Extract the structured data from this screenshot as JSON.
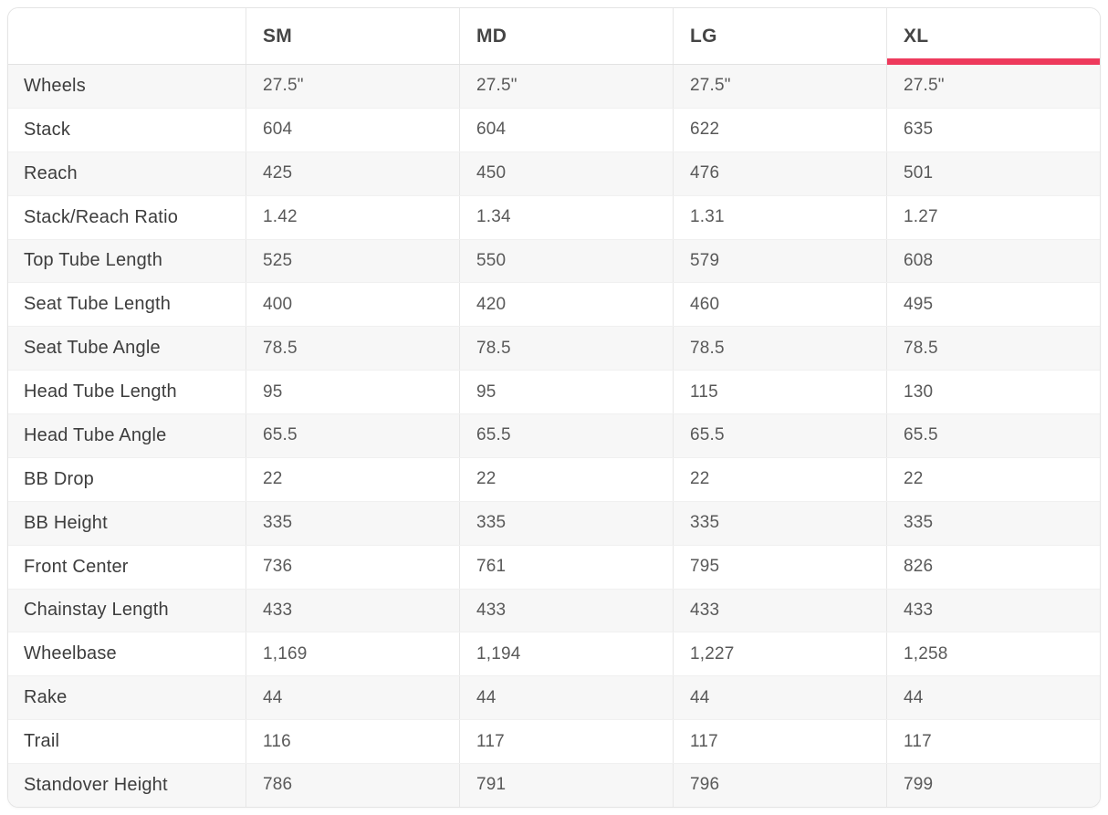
{
  "table": {
    "columns": [
      {
        "label": "SM",
        "selected": false
      },
      {
        "label": "MD",
        "selected": false
      },
      {
        "label": "LG",
        "selected": false
      },
      {
        "label": "XL",
        "selected": true
      }
    ],
    "rows": [
      {
        "label": "Wheels",
        "values": [
          "27.5\"",
          "27.5\"",
          "27.5\"",
          "27.5\""
        ]
      },
      {
        "label": "Stack",
        "values": [
          "604",
          "604",
          "622",
          "635"
        ]
      },
      {
        "label": "Reach",
        "values": [
          "425",
          "450",
          "476",
          "501"
        ]
      },
      {
        "label": "Stack/Reach Ratio",
        "values": [
          "1.42",
          "1.34",
          "1.31",
          "1.27"
        ]
      },
      {
        "label": "Top Tube Length",
        "values": [
          "525",
          "550",
          "579",
          "608"
        ]
      },
      {
        "label": "Seat Tube Length",
        "values": [
          "400",
          "420",
          "460",
          "495"
        ]
      },
      {
        "label": "Seat Tube Angle",
        "values": [
          "78.5",
          "78.5",
          "78.5",
          "78.5"
        ]
      },
      {
        "label": "Head Tube Length",
        "values": [
          "95",
          "95",
          "115",
          "130"
        ]
      },
      {
        "label": "Head Tube Angle",
        "values": [
          "65.5",
          "65.5",
          "65.5",
          "65.5"
        ]
      },
      {
        "label": "BB Drop",
        "values": [
          "22",
          "22",
          "22",
          "22"
        ]
      },
      {
        "label": "BB Height",
        "values": [
          "335",
          "335",
          "335",
          "335"
        ]
      },
      {
        "label": "Front Center",
        "values": [
          "736",
          "761",
          "795",
          "826"
        ]
      },
      {
        "label": "Chainstay Length",
        "values": [
          "433",
          "433",
          "433",
          "433"
        ]
      },
      {
        "label": "Wheelbase",
        "values": [
          "1,169",
          "1,194",
          "1,227",
          "1,258"
        ]
      },
      {
        "label": "Rake",
        "values": [
          "44",
          "44",
          "44",
          "44"
        ]
      },
      {
        "label": "Trail",
        "values": [
          "116",
          "117",
          "117",
          "117"
        ]
      },
      {
        "label": "Standover Height",
        "values": [
          "786",
          "791",
          "796",
          "799"
        ]
      }
    ]
  },
  "colors": {
    "accent": "#ee3a5c",
    "row_stripe": "#f7f7f7"
  },
  "chart_data": {
    "type": "table",
    "columns": [
      "SM",
      "MD",
      "LG",
      "XL"
    ],
    "selected_column": "XL",
    "rows": [
      {
        "label": "Wheels",
        "values": [
          "27.5\"",
          "27.5\"",
          "27.5\"",
          "27.5\""
        ]
      },
      {
        "label": "Stack",
        "values": [
          604,
          604,
          622,
          635
        ]
      },
      {
        "label": "Reach",
        "values": [
          425,
          450,
          476,
          501
        ]
      },
      {
        "label": "Stack/Reach Ratio",
        "values": [
          1.42,
          1.34,
          1.31,
          1.27
        ]
      },
      {
        "label": "Top Tube Length",
        "values": [
          525,
          550,
          579,
          608
        ]
      },
      {
        "label": "Seat Tube Length",
        "values": [
          400,
          420,
          460,
          495
        ]
      },
      {
        "label": "Seat Tube Angle",
        "values": [
          78.5,
          78.5,
          78.5,
          78.5
        ]
      },
      {
        "label": "Head Tube Length",
        "values": [
          95,
          95,
          115,
          130
        ]
      },
      {
        "label": "Head Tube Angle",
        "values": [
          65.5,
          65.5,
          65.5,
          65.5
        ]
      },
      {
        "label": "BB Drop",
        "values": [
          22,
          22,
          22,
          22
        ]
      },
      {
        "label": "BB Height",
        "values": [
          335,
          335,
          335,
          335
        ]
      },
      {
        "label": "Front Center",
        "values": [
          736,
          761,
          795,
          826
        ]
      },
      {
        "label": "Chainstay Length",
        "values": [
          433,
          433,
          433,
          433
        ]
      },
      {
        "label": "Wheelbase",
        "values": [
          1169,
          1194,
          1227,
          1258
        ]
      },
      {
        "label": "Rake",
        "values": [
          44,
          44,
          44,
          44
        ]
      },
      {
        "label": "Trail",
        "values": [
          116,
          117,
          117,
          117
        ]
      },
      {
        "label": "Standover Height",
        "values": [
          786,
          791,
          796,
          799
        ]
      }
    ]
  }
}
